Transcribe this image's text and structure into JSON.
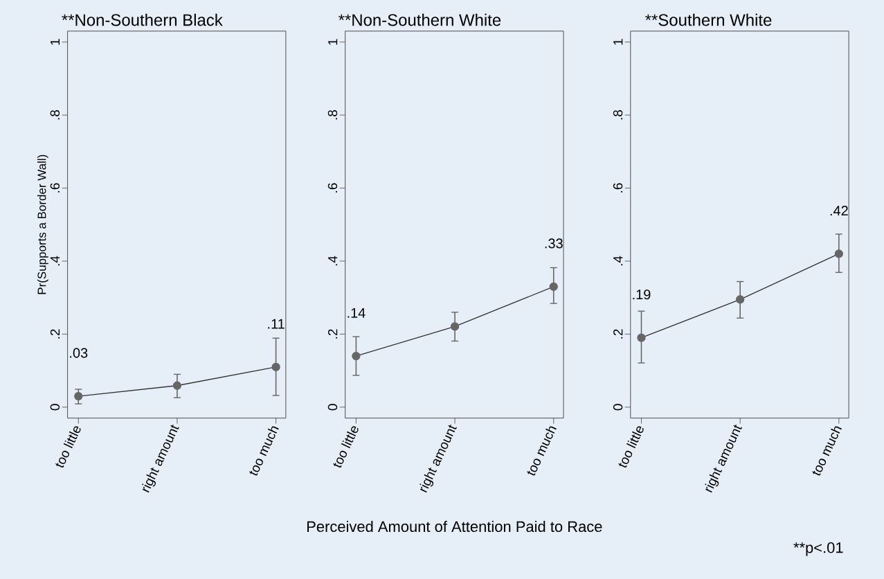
{
  "chart_data": [
    {
      "type": "line",
      "title": "**Non-Southern Black",
      "ylabel": "Pr(Supports a Border Wall)",
      "categories": [
        "too little",
        "right amount",
        "too much"
      ],
      "values": [
        0.03,
        0.059,
        0.11
      ],
      "errors": [
        [
          0.009,
          0.049
        ],
        [
          0.026,
          0.09
        ],
        [
          0.032,
          0.189
        ]
      ],
      "value_labels": [
        ".03",
        null,
        ".11"
      ],
      "color": "#666666",
      "marker": "circle",
      "ylim": [
        -0.03,
        1.03
      ],
      "yticks": [
        0,
        {
          "value": 0.2,
          "label": ".2"
        },
        {
          "value": 0.4,
          "label": ".4"
        },
        {
          "value": 0.6,
          "label": ".6"
        },
        {
          "value": 0.8,
          "label": ".8"
        },
        1
      ],
      "grid": false
    },
    {
      "type": "line",
      "title": "**Non-Southern White",
      "xlabel": "Perceived Amount of Attention Paid to Race",
      "categories": [
        "too little",
        "right amount",
        "too much"
      ],
      "values": [
        0.14,
        0.221,
        0.33
      ],
      "errors": [
        [
          0.087,
          0.193
        ],
        [
          0.181,
          0.26
        ],
        [
          0.284,
          0.382
        ]
      ],
      "value_labels": [
        ".14",
        null,
        ".33"
      ],
      "color": "#666666",
      "marker": "circle",
      "ylim": [
        -0.03,
        1.03
      ],
      "yticks": [
        0,
        {
          "value": 0.2,
          "label": ".2"
        },
        {
          "value": 0.4,
          "label": ".4"
        },
        {
          "value": 0.6,
          "label": ".6"
        },
        {
          "value": 0.8,
          "label": ".8"
        },
        1
      ],
      "grid": false
    },
    {
      "type": "line",
      "title": "**Southern White",
      "annotations": [
        "**p<.01"
      ],
      "categories": [
        "too little",
        "right amount",
        "too much"
      ],
      "values": [
        0.19,
        0.295,
        0.42
      ],
      "errors": [
        [
          0.121,
          0.263
        ],
        [
          0.244,
          0.344
        ],
        [
          0.369,
          0.474
        ]
      ],
      "value_labels": [
        ".19",
        null,
        ".42"
      ],
      "color": "#666666",
      "marker": "circle",
      "ylim": [
        -0.03,
        1.03
      ],
      "yticks": [
        0,
        {
          "value": 0.2,
          "label": ".2"
        },
        {
          "value": 0.4,
          "label": ".4"
        },
        {
          "value": 0.6,
          "label": ".6"
        },
        {
          "value": 0.8,
          "label": ".8"
        },
        1
      ],
      "grid": false
    }
  ]
}
